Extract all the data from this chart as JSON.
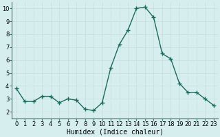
{
  "x": [
    0,
    1,
    2,
    3,
    4,
    5,
    6,
    7,
    8,
    9,
    10,
    11,
    12,
    13,
    14,
    15,
    16,
    17,
    18,
    19,
    20,
    21,
    22,
    23
  ],
  "y": [
    3.8,
    2.8,
    2.8,
    3.2,
    3.2,
    2.7,
    3.0,
    2.9,
    2.2,
    2.1,
    2.7,
    5.4,
    7.2,
    8.3,
    10.0,
    10.1,
    9.3,
    6.5,
    6.1,
    4.2,
    3.5,
    3.5,
    3.0,
    2.5
  ],
  "line_color": "#1a6b5a",
  "marker": "+",
  "marker_size": 4,
  "marker_lw": 1.0,
  "xlabel": "Humidex (Indice chaleur)",
  "ylim": [
    1.5,
    10.5
  ],
  "xlim": [
    -0.5,
    23.5
  ],
  "yticks": [
    2,
    3,
    4,
    5,
    6,
    7,
    8,
    9,
    10
  ],
  "xticks": [
    0,
    1,
    2,
    3,
    4,
    5,
    6,
    7,
    8,
    9,
    10,
    11,
    12,
    13,
    14,
    15,
    16,
    17,
    18,
    19,
    20,
    21,
    22,
    23
  ],
  "background_color": "#d6eeee",
  "grid_color": "#c8e0e0",
  "tick_fontsize": 6,
  "xlabel_fontsize": 7,
  "linewidth": 1.0
}
